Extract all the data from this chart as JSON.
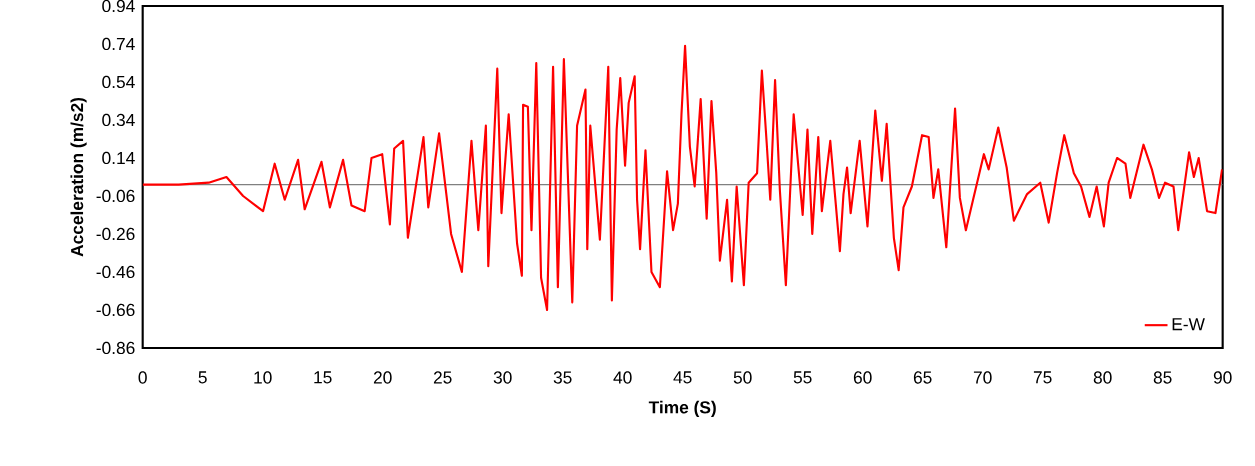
{
  "chart_data": {
    "type": "line",
    "xlabel": "Time (S)",
    "ylabel": "Acceleration (m/s2)",
    "xlim": [
      0,
      90
    ],
    "xticks": [
      0,
      5,
      10,
      15,
      20,
      25,
      30,
      35,
      40,
      45,
      50,
      55,
      60,
      65,
      70,
      75,
      80,
      85,
      90
    ],
    "ylim": [
      -0.86,
      0.94
    ],
    "yticks": [
      -0.86,
      -0.66,
      -0.46,
      -0.26,
      -0.06,
      0.14,
      0.34,
      0.54,
      0.74,
      0.94
    ],
    "grid": false,
    "legend": "bottom right",
    "ref_lines": [
      {
        "axis": "y",
        "value": 0,
        "color": "#808080"
      }
    ],
    "series": [
      {
        "name": "E-W",
        "color": "#ff0000",
        "x": [
          0,
          3,
          5.5,
          6.98,
          8.37,
          10.03,
          11.0,
          11.84,
          12.95,
          13.5,
          14.9,
          15.6,
          16.7,
          17.4,
          18.5,
          19.07,
          19.96,
          20.6,
          20.96,
          21.7,
          22.1,
          23.4,
          23.8,
          24.7,
          25.7,
          26.6,
          27.4,
          27.97,
          28.6,
          28.8,
          29.55,
          29.9,
          30.5,
          31.2,
          31.6,
          31.7,
          32.1,
          32.4,
          32.8,
          33.2,
          33.7,
          34.2,
          34.6,
          35.1,
          35.8,
          36.2,
          36.9,
          37.05,
          37.3,
          38.1,
          38.8,
          39.1,
          39.5,
          39.8,
          40.2,
          40.5,
          41.0,
          41.2,
          41.45,
          41.9,
          42.4,
          43.1,
          43.7,
          44.2,
          44.6,
          44.9,
          45.2,
          45.6,
          46.0,
          46.5,
          47.0,
          47.4,
          47.8,
          48.1,
          48.7,
          49.1,
          49.5,
          50.1,
          50.5,
          51.2,
          51.6,
          52.0,
          52.3,
          52.7,
          53.1,
          53.6,
          54.25,
          55.0,
          55.4,
          55.8,
          56.3,
          56.6,
          57.3,
          58.1,
          58.4,
          58.7,
          59.0,
          59.75,
          60.4,
          61.05,
          61.6,
          62.0,
          62.6,
          63.0,
          63.4,
          64.1,
          64.95,
          65.5,
          65.9,
          66.3,
          66.97,
          67.7,
          68.1,
          68.6,
          69.2,
          70.1,
          70.5,
          71.3,
          72.0,
          72.6,
          73.7,
          74.8,
          75.5,
          76.2,
          76.8,
          77.6,
          78.2,
          78.9,
          79.5,
          80.1,
          80.5,
          81.2,
          81.9,
          82.3,
          83.4,
          84.1,
          84.7,
          85.2,
          85.9,
          86.3,
          87.2,
          87.6,
          88.0,
          88.7,
          89.4,
          89.95
        ],
        "values": [
          0,
          0,
          0.01,
          0.04,
          -0.06,
          -0.14,
          0.11,
          -0.08,
          0.13,
          -0.13,
          0.12,
          -0.12,
          0.13,
          -0.11,
          -0.14,
          0.14,
          0.16,
          -0.21,
          0.19,
          0.23,
          -0.28,
          0.25,
          -0.12,
          0.27,
          -0.26,
          -0.46,
          0.23,
          -0.24,
          0.31,
          -0.43,
          0.61,
          -0.15,
          0.37,
          -0.31,
          -0.48,
          0.42,
          0.41,
          -0.24,
          0.64,
          -0.49,
          -0.66,
          0.62,
          -0.54,
          0.66,
          -0.62,
          0.31,
          0.5,
          -0.34,
          0.31,
          -0.29,
          0.62,
          -0.61,
          0.29,
          0.56,
          0.1,
          0.43,
          0.57,
          -0.08,
          -0.34,
          0.18,
          -0.46,
          -0.54,
          0.07,
          -0.24,
          -0.1,
          0.37,
          0.73,
          0.2,
          -0.01,
          0.45,
          -0.18,
          0.44,
          0.06,
          -0.4,
          -0.08,
          -0.51,
          -0.01,
          -0.53,
          0.01,
          0.06,
          0.6,
          0.22,
          -0.08,
          0.55,
          -0.03,
          -0.53,
          0.37,
          -0.16,
          0.29,
          -0.26,
          0.25,
          -0.14,
          0.23,
          -0.35,
          -0.05,
          0.09,
          -0.15,
          0.23,
          -0.22,
          0.39,
          0.02,
          0.32,
          -0.28,
          -0.45,
          -0.12,
          -0.01,
          0.26,
          0.25,
          -0.07,
          0.08,
          -0.33,
          0.4,
          -0.07,
          -0.24,
          -0.08,
          0.16,
          0.08,
          0.3,
          0.09,
          -0.19,
          -0.05,
          0.01,
          -0.2,
          0.06,
          0.26,
          0.06,
          -0.01,
          -0.17,
          -0.01,
          -0.22,
          0.01,
          0.14,
          0.11,
          -0.07,
          0.21,
          0.08,
          -0.07,
          0.01,
          -0.01,
          -0.24,
          0.17,
          0.04,
          0.14,
          -0.14,
          -0.15,
          0.08
        ]
      }
    ]
  }
}
